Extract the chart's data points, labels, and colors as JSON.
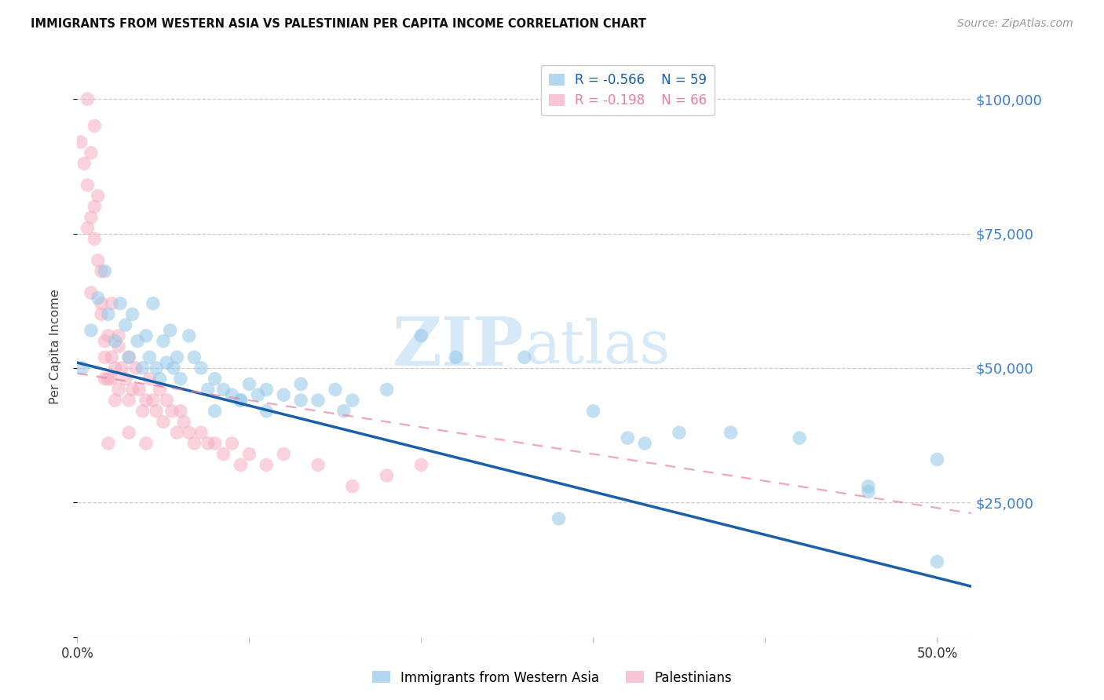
{
  "title": "IMMIGRANTS FROM WESTERN ASIA VS PALESTINIAN PER CAPITA INCOME CORRELATION CHART",
  "source": "Source: ZipAtlas.com",
  "ylabel": "Per Capita Income",
  "xlim": [
    0.0,
    0.52
  ],
  "ylim": [
    0,
    108000
  ],
  "yticks": [
    0,
    25000,
    50000,
    75000,
    100000
  ],
  "ytick_labels_right": [
    "",
    "$25,000",
    "$50,000",
    "$75,000",
    "$100,000"
  ],
  "xticks": [
    0.0,
    0.1,
    0.2,
    0.3,
    0.4,
    0.5
  ],
  "xtick_labels": [
    "0.0%",
    "",
    "",
    "",
    "",
    "50.0%"
  ],
  "legend_R1": "R = -0.566",
  "legend_N1": "N = 59",
  "legend_R2": "R = -0.198",
  "legend_N2": "N = 66",
  "color_blue": "#93c6e8",
  "color_pink": "#f5aec0",
  "color_blue_line": "#1a5fa8",
  "color_pink_line": "#e8829a",
  "color_blue_label": "#3a7ecf",
  "watermark_color": "#d6e9f8",
  "background": "#ffffff",
  "grid_color": "#cccccc",
  "label1": "Immigrants from Western Asia",
  "label2": "Palestinians",
  "blue_x": [
    0.003,
    0.008,
    0.012,
    0.016,
    0.018,
    0.022,
    0.025,
    0.028,
    0.03,
    0.032,
    0.035,
    0.038,
    0.04,
    0.042,
    0.044,
    0.046,
    0.048,
    0.05,
    0.052,
    0.054,
    0.056,
    0.058,
    0.06,
    0.065,
    0.068,
    0.072,
    0.076,
    0.08,
    0.085,
    0.09,
    0.095,
    0.1,
    0.105,
    0.11,
    0.12,
    0.13,
    0.14,
    0.15,
    0.16,
    0.18,
    0.2,
    0.22,
    0.26,
    0.3,
    0.32,
    0.35,
    0.38,
    0.42,
    0.46,
    0.5,
    0.08,
    0.095,
    0.11,
    0.13,
    0.155,
    0.28,
    0.33,
    0.46,
    0.5
  ],
  "blue_y": [
    50000,
    57000,
    63000,
    68000,
    60000,
    55000,
    62000,
    58000,
    52000,
    60000,
    55000,
    50000,
    56000,
    52000,
    62000,
    50000,
    48000,
    55000,
    51000,
    57000,
    50000,
    52000,
    48000,
    56000,
    52000,
    50000,
    46000,
    48000,
    46000,
    45000,
    44000,
    47000,
    45000,
    46000,
    45000,
    47000,
    44000,
    46000,
    44000,
    46000,
    56000,
    52000,
    52000,
    42000,
    37000,
    38000,
    38000,
    37000,
    28000,
    14000,
    42000,
    44000,
    42000,
    44000,
    42000,
    22000,
    36000,
    27000,
    33000
  ],
  "pink_x": [
    0.002,
    0.004,
    0.006,
    0.006,
    0.008,
    0.008,
    0.01,
    0.01,
    0.012,
    0.012,
    0.014,
    0.014,
    0.016,
    0.016,
    0.018,
    0.018,
    0.02,
    0.02,
    0.022,
    0.022,
    0.024,
    0.024,
    0.026,
    0.028,
    0.03,
    0.03,
    0.032,
    0.034,
    0.036,
    0.038,
    0.04,
    0.042,
    0.044,
    0.046,
    0.048,
    0.05,
    0.052,
    0.055,
    0.058,
    0.06,
    0.062,
    0.065,
    0.068,
    0.072,
    0.076,
    0.08,
    0.085,
    0.09,
    0.095,
    0.1,
    0.11,
    0.12,
    0.14,
    0.16,
    0.18,
    0.2,
    0.006,
    0.008,
    0.01,
    0.014,
    0.016,
    0.018,
    0.02,
    0.024,
    0.03,
    0.04
  ],
  "pink_y": [
    92000,
    88000,
    100000,
    84000,
    90000,
    78000,
    95000,
    74000,
    82000,
    70000,
    60000,
    68000,
    55000,
    52000,
    56000,
    48000,
    52000,
    48000,
    50000,
    44000,
    56000,
    46000,
    50000,
    48000,
    52000,
    44000,
    46000,
    50000,
    46000,
    42000,
    44000,
    48000,
    44000,
    42000,
    46000,
    40000,
    44000,
    42000,
    38000,
    42000,
    40000,
    38000,
    36000,
    38000,
    36000,
    36000,
    34000,
    36000,
    32000,
    34000,
    32000,
    34000,
    32000,
    28000,
    30000,
    32000,
    76000,
    64000,
    80000,
    62000,
    48000,
    36000,
    62000,
    54000,
    38000,
    36000
  ]
}
